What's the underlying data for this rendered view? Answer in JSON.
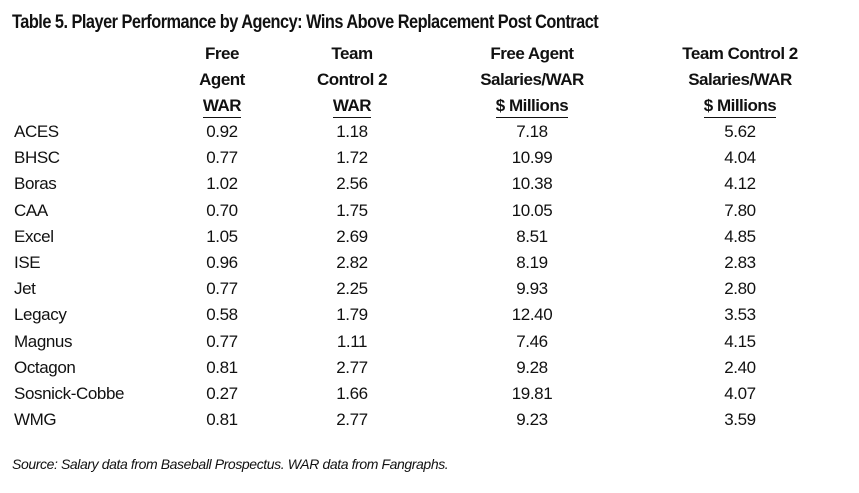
{
  "title": "Table 5.  Player Performance by Agency: Wins Above Replacement Post Contract",
  "columns": [
    {
      "lines": [
        "Free",
        "Agent",
        "WAR"
      ]
    },
    {
      "lines": [
        "",
        "Team",
        "Control 2",
        "WAR"
      ]
    },
    {
      "lines": [
        "Free Agent",
        "Salaries/WAR",
        "$ Millions"
      ]
    },
    {
      "lines": [
        "Team Control 2",
        "Salaries/WAR",
        "$ Millions"
      ]
    }
  ],
  "rows": [
    {
      "agency": "ACES",
      "fa_war": "0.92",
      "tc_war": "1.18",
      "fa_sal": "7.18",
      "tc_sal": "5.62"
    },
    {
      "agency": "BHSC",
      "fa_war": "0.77",
      "tc_war": "1.72",
      "fa_sal": "10.99",
      "tc_sal": "4.04"
    },
    {
      "agency": "Boras",
      "fa_war": "1.02",
      "tc_war": "2.56",
      "fa_sal": "10.38",
      "tc_sal": "4.12"
    },
    {
      "agency": "CAA",
      "fa_war": "0.70",
      "tc_war": "1.75",
      "fa_sal": "10.05",
      "tc_sal": "7.80"
    },
    {
      "agency": "Excel",
      "fa_war": "1.05",
      "tc_war": "2.69",
      "fa_sal": "8.51",
      "tc_sal": "4.85"
    },
    {
      "agency": "ISE",
      "fa_war": "0.96",
      "tc_war": "2.82",
      "fa_sal": "8.19",
      "tc_sal": "2.83"
    },
    {
      "agency": "Jet",
      "fa_war": "0.77",
      "tc_war": "2.25",
      "fa_sal": "9.93",
      "tc_sal": "2.80"
    },
    {
      "agency": "Legacy",
      "fa_war": "0.58",
      "tc_war": "1.79",
      "fa_sal": "12.40",
      "tc_sal": "3.53"
    },
    {
      "agency": "Magnus",
      "fa_war": "0.77",
      "tc_war": "1.11",
      "fa_sal": "7.46",
      "tc_sal": "4.15"
    },
    {
      "agency": "Octagon",
      "fa_war": "0.81",
      "tc_war": "2.77",
      "fa_sal": "9.28",
      "tc_sal": "2.40"
    },
    {
      "agency": "Sosnick-Cobbe",
      "fa_war": "0.27",
      "tc_war": "1.66",
      "fa_sal": "19.81",
      "tc_sal": "4.07"
    },
    {
      "agency": "WMG",
      "fa_war": "0.81",
      "tc_war": "2.77",
      "fa_sal": "9.23",
      "tc_sal": "3.59"
    }
  ],
  "source": "Source: Salary data from Baseball Prospectus. WAR data from Fangraphs."
}
